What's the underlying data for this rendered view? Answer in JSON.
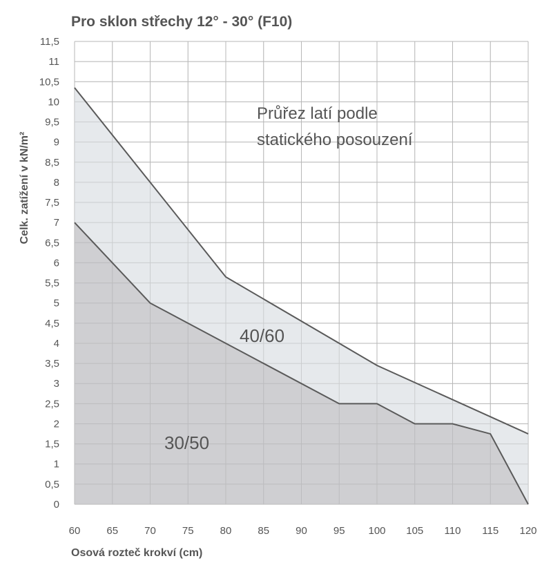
{
  "chart_data": {
    "type": "area",
    "title": "Pro sklon střechy 12° - 30° (F10)",
    "xlabel": "Osová rozteč krokví (cm)",
    "ylabel": "Celk. zatížení v kN/m²",
    "xlim": [
      60,
      120
    ],
    "ylim": [
      0,
      11.5
    ],
    "x_ticks": [
      "60",
      "65",
      "70",
      "75",
      "80",
      "85",
      "90",
      "95",
      "100",
      "105",
      "110",
      "115",
      "120"
    ],
    "y_ticks": [
      "0",
      "0,5",
      "1",
      "1,5",
      "2",
      "2,5",
      "3",
      "3,5",
      "4",
      "4,5",
      "5",
      "5,5",
      "6",
      "6,5",
      "7",
      "7,5",
      "8",
      "8,5",
      "9",
      "9,5",
      "10",
      "10,5",
      "11",
      "11,5"
    ],
    "grid": true,
    "series": [
      {
        "name": "30/50",
        "x": [
          60,
          70,
          80,
          95,
          100,
          105,
          110,
          115,
          120
        ],
        "y": [
          7.0,
          5.0,
          4.0,
          2.5,
          2.5,
          2.0,
          2.0,
          1.75,
          0
        ],
        "color": "#cfcfd2"
      },
      {
        "name": "40/60",
        "x": [
          60,
          70,
          80,
          100,
          120
        ],
        "y": [
          10.35,
          8.0,
          5.65,
          3.45,
          1.75
        ],
        "color": "#e6e9ec"
      }
    ],
    "annotation": [
      "Průřez latí podle",
      "statického posouzení"
    ],
    "colors": {
      "line": "#5a5a5a",
      "grid": "#c8c8c8",
      "axis_text": "#555555"
    }
  }
}
